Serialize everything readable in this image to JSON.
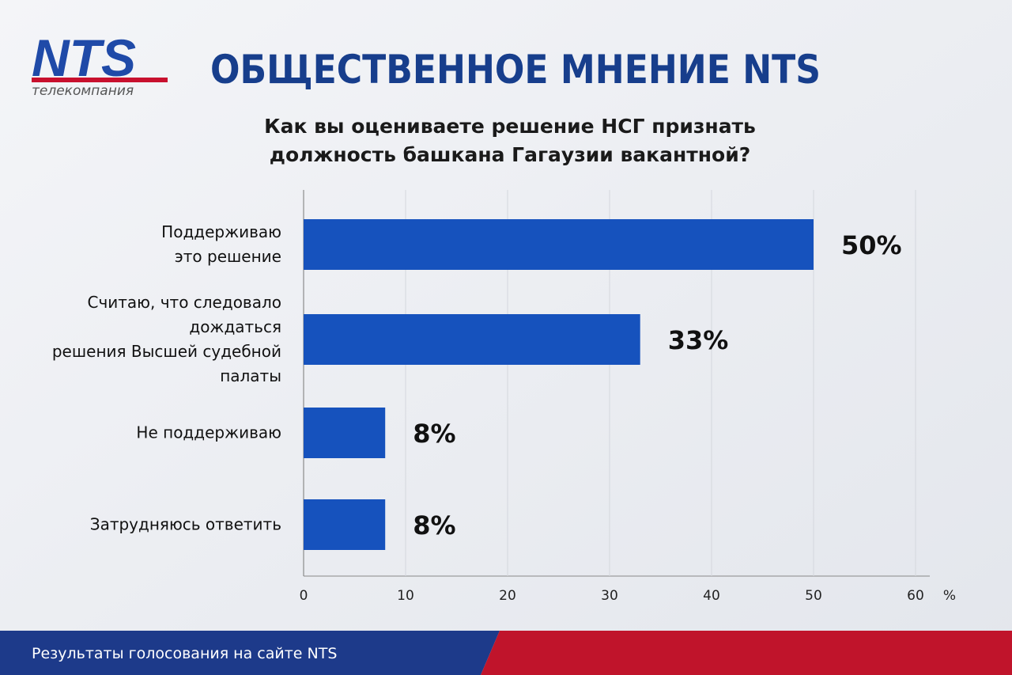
{
  "header": {
    "logo": "NTS",
    "logo_caption": "телекомпания"
  },
  "chart_data": {
    "type": "hbar",
    "title": "ОБЩЕСТВЕННОЕ МНЕНИЕ NTS",
    "subtitle": "Как вы оцениваете решение НСГ признать\nдолжность башкана Гагаузии вакантной?",
    "categories": [
      "Поддерживаю\nэто решение",
      "Считаю, что следовало дождаться\nрешения Высшей судебной палаты",
      "Не поддерживаю",
      "Затрудняюсь ответить"
    ],
    "values": [
      50,
      33,
      8,
      8
    ],
    "value_labels": [
      "50%",
      "33%",
      "8%",
      "8%"
    ],
    "color": "#1652bd",
    "xlim": [
      0,
      60
    ],
    "xticks": [
      0,
      10,
      20,
      30,
      40,
      50,
      60
    ],
    "x_unit": "%",
    "grid": true
  },
  "footer": {
    "text": "Результаты голосования на сайте NTS"
  }
}
